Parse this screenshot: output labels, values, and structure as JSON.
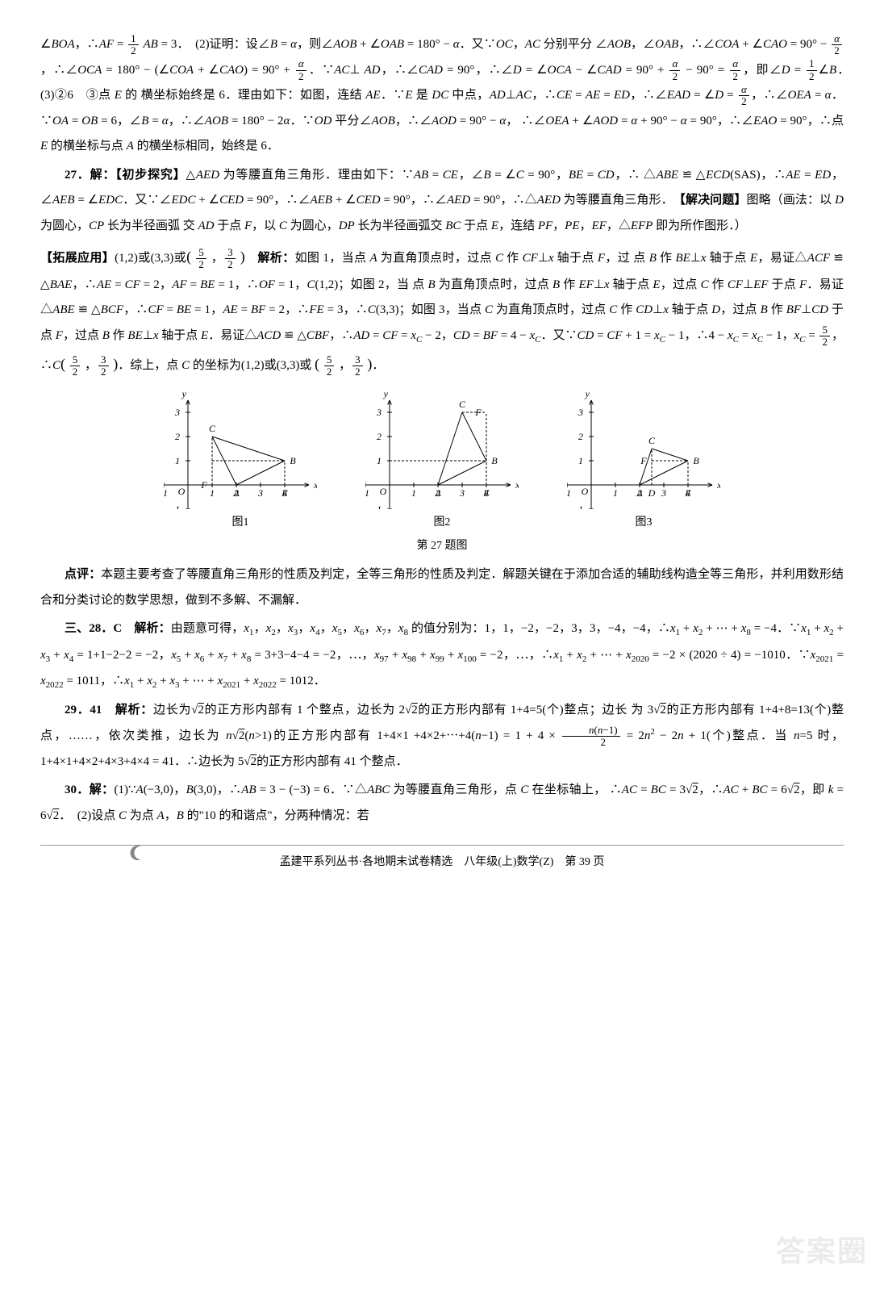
{
  "paragraphs": {
    "p1": "∠BOA，∴AF = ½ AB = 3．　(2)证明：设∠B = α，则∠AOB + ∠OAB = 180° − α．又∵OC，AC 分别平分∠AOB，∠OAB，∴∠COA + ∠CAO = 90° − α/2，∴∠OCA = 180° − (∠COA + ∠CAO) = 90° + α/2．∵AC⊥AD，∴∠CAD = 90°，∴∠D = ∠OCA − ∠CAD = 90° + α/2 − 90° = α/2，即∠D = ½∠B．　(3)②6　③点 E 的横坐标始终是 6．理由如下：如图，连结 AE．∵E 是 DC 中点，AD⊥AC，∴CE = AE = ED，∴∠EAD = ∠D = α/2，∴∠OEA = α．∵OA = OB = 6，∠B = α，∴∠AOB = 180° − 2α．∵OD 平分∠AOB，∴∠AOD = 90° − α，∴∠OEA + ∠AOD = α + 90° − α = 90°，∴∠EAO = 90°，∴点 E 的横坐标与点 A 的横坐标相同，始终是 6．",
    "p2_label": "27．解：【初步探究】",
    "p2": "△AED 为等腰直角三角形．理由如下：∵AB = CE，∠B = ∠C = 90°，BE = CD，∴△ABE ≌ △ECD(SAS)，∴AE = ED，∠AEB = ∠EDC．又∵∠EDC + ∠CED = 90°，∴∠AEB + ∠CED = 90°，∴∠AED = 90°，∴△AED 为等腰直角三角形．　【解决问题】图略（画法：以 D 为圆心，CP 长为半径画弧交 AD 于点 F，以 C 为圆心，DP 长为半径画弧交 BC 于点 E，连结 PF，PE，EF，△EFP 即为所作图形．）",
    "p3_label": "【拓展应用】",
    "p3_answer": "(1,2)或(3,3)或( 5/2 , 3/2 )",
    "p3_analysis_label": "解析：",
    "p3": "如图 1，当点 A 为直角顶点时，过点 C 作 CF⊥x 轴于点 F，过点 B 作 BE⊥x 轴于点 E，易证△ACF ≌ △BAE，∴AE = CF = 2，AF = BE = 1，∴OF = 1，C(1,2)；如图 2，当点 B 为直角顶点时，过点 B 作 EF⊥x 轴于点 E，过点 C 作 CF⊥EF 于点 F．易证△ABE ≌ △BCF，∴CF = BE = 1，AE = BF = 2，∴FE = 3，∴C(3,3)；如图 3，当点 C 为直角顶点时，过点 C 作 CD⊥x 轴于点 D，过点 B 作 BF⊥CD 于点 F，过点 B 作 BE⊥x 轴于点 E．易证△ACD ≌ △CBF，∴AD = CF = xC − 2，CD = BF = 4 − xC．又∵CD = CF + 1 = xC − 1，∴4 − xC = xC − 1，xC = 5/2，∴C( 5/2 , 3/2 )．综上，点 C 的坐标为(1,2)或(3,3)或( 5/2 , 3/2 )．",
    "fig_main_caption": "第 27 题图",
    "fig1_caption": "图1",
    "fig2_caption": "图2",
    "fig3_caption": "图3",
    "p4_label": "点评：",
    "p4": "本题主要考查了等腰直角三角形的性质及判定，全等三角形的性质及判定．解题关键在于添加合适的辅助线构造全等三角形，并利用数形结合和分类讨论的数学思想，做到不多解、不漏解．",
    "p5_label": "三、28．C",
    "p5_analysis_label": "解析：",
    "p5": "由题意可得，x₁，x₂，x₃，x₄，x₅，x₆，x₇，x₈ 的值分别为：1，1，−2，−2，3，3，−4，−4，∴x₁ + x₂ + ⋯ + x₈ = −4．∵x₁ + x₂ + x₃ + x₄ = 1 + 1 − 2 − 2 = −2，x₅ + x₆ + x₇ + x₈ = 3 + 3 − 4 − 4 = −2，⋯，x₉₇ + x₉₈ + x₉₉ + x₁₀₀ = −2，⋯，∴x₁ + x₂ + ⋯ + x₂₀₂₀ = −2 × (2020 ÷ 4) = −1010．∵x₂₀₂₁ = x₂₀₂₂ = 1011，∴x₁ + x₂ + x₃ + ⋯ + x₂₀₂₁ + x₂₀₂₂ = 1012．",
    "p6_label": "29．41",
    "p6_analysis_label": "解析：",
    "p6": "边长为√2的正方形内部有 1 个整点，边长为 2√2的正方形内部有 1+4=5(个)整点；边长为 3√2的正方形内部有 1+4+8=13(个)整点，……，依次类推，边长为 n√2(n>1)的正方形内部有 1+4×1+4×2+⋯+4(n−1) = 1 + 4 × n(n−1)/2 = 2n² − 2n + 1(个)整点．当 n=5 时，1+4×1+4×2+4×3+4×4 = 41．∴边长为 5√2的正方形内部有 41 个整点．",
    "p7_label": "30．解：",
    "p7": "(1)∵A(−3,0)，B(3,0)，∴AB = 3 − (−3) = 6．∵△ABC 为等腰直角三角形，点 C 在坐标轴上，∴AC = BC = 3√2，∴AC + BC = 6√2，即 k = 6√2．　(2)设点 C 为点 A，B 的\"10 的和谐点\"，分两种情况：若"
  },
  "footer": {
    "text": "孟建平系列丛书·各地期末试卷精选　八年级(上)数学(Z)　第 39 页"
  },
  "watermark": "答案圈",
  "charts": {
    "common": {
      "axis_color": "#000000",
      "line_color": "#000000",
      "dash": "3,2",
      "font_size": 12,
      "width": 190,
      "height": 160,
      "x_range": [
        -1,
        5
      ],
      "y_range": [
        -1,
        3.5
      ],
      "x_ticks": [
        -1,
        1,
        2,
        3,
        4
      ],
      "y_ticks": [
        -1,
        1,
        2,
        3
      ]
    },
    "fig1": {
      "A": [
        2,
        0
      ],
      "B": [
        4,
        1
      ],
      "C": [
        1,
        2
      ],
      "E": [
        4,
        0
      ],
      "F": [
        1,
        0
      ],
      "O": [
        0,
        0
      ],
      "solid_paths": [
        [
          [
            2,
            0
          ],
          [
            4,
            1
          ]
        ],
        [
          [
            2,
            0
          ],
          [
            1,
            2
          ]
        ],
        [
          [
            4,
            1
          ],
          [
            1,
            2
          ]
        ]
      ],
      "dashed_paths": [
        [
          [
            1,
            0
          ],
          [
            1,
            2
          ]
        ],
        [
          [
            4,
            0
          ],
          [
            4,
            1
          ]
        ],
        [
          [
            1,
            1
          ],
          [
            4,
            1
          ]
        ]
      ]
    },
    "fig2": {
      "A": [
        2,
        0
      ],
      "B": [
        4,
        1
      ],
      "C": [
        3,
        3
      ],
      "E": [
        4,
        0
      ],
      "F": [
        4,
        3
      ],
      "O": [
        0,
        0
      ],
      "solid_paths": [
        [
          [
            2,
            0
          ],
          [
            4,
            1
          ]
        ],
        [
          [
            2,
            0
          ],
          [
            3,
            3
          ]
        ],
        [
          [
            4,
            1
          ],
          [
            3,
            3
          ]
        ]
      ],
      "dashed_paths": [
        [
          [
            4,
            0
          ],
          [
            4,
            3
          ]
        ],
        [
          [
            3,
            3
          ],
          [
            4,
            3
          ]
        ],
        [
          [
            0,
            1
          ],
          [
            4,
            1
          ]
        ]
      ]
    },
    "fig3": {
      "A": [
        2,
        0
      ],
      "B": [
        4,
        1
      ],
      "C": [
        2.5,
        1.5
      ],
      "D": [
        2.5,
        0
      ],
      "E": [
        4,
        0
      ],
      "F": [
        2.5,
        1
      ],
      "O": [
        0,
        0
      ],
      "solid_paths": [
        [
          [
            2,
            0
          ],
          [
            4,
            1
          ]
        ],
        [
          [
            2,
            0
          ],
          [
            2.5,
            1.5
          ]
        ],
        [
          [
            4,
            1
          ],
          [
            2.5,
            1.5
          ]
        ]
      ],
      "dashed_paths": [
        [
          [
            2.5,
            0
          ],
          [
            2.5,
            1.5
          ]
        ],
        [
          [
            4,
            0
          ],
          [
            4,
            1
          ]
        ],
        [
          [
            2.5,
            1
          ],
          [
            4,
            1
          ]
        ]
      ]
    }
  }
}
